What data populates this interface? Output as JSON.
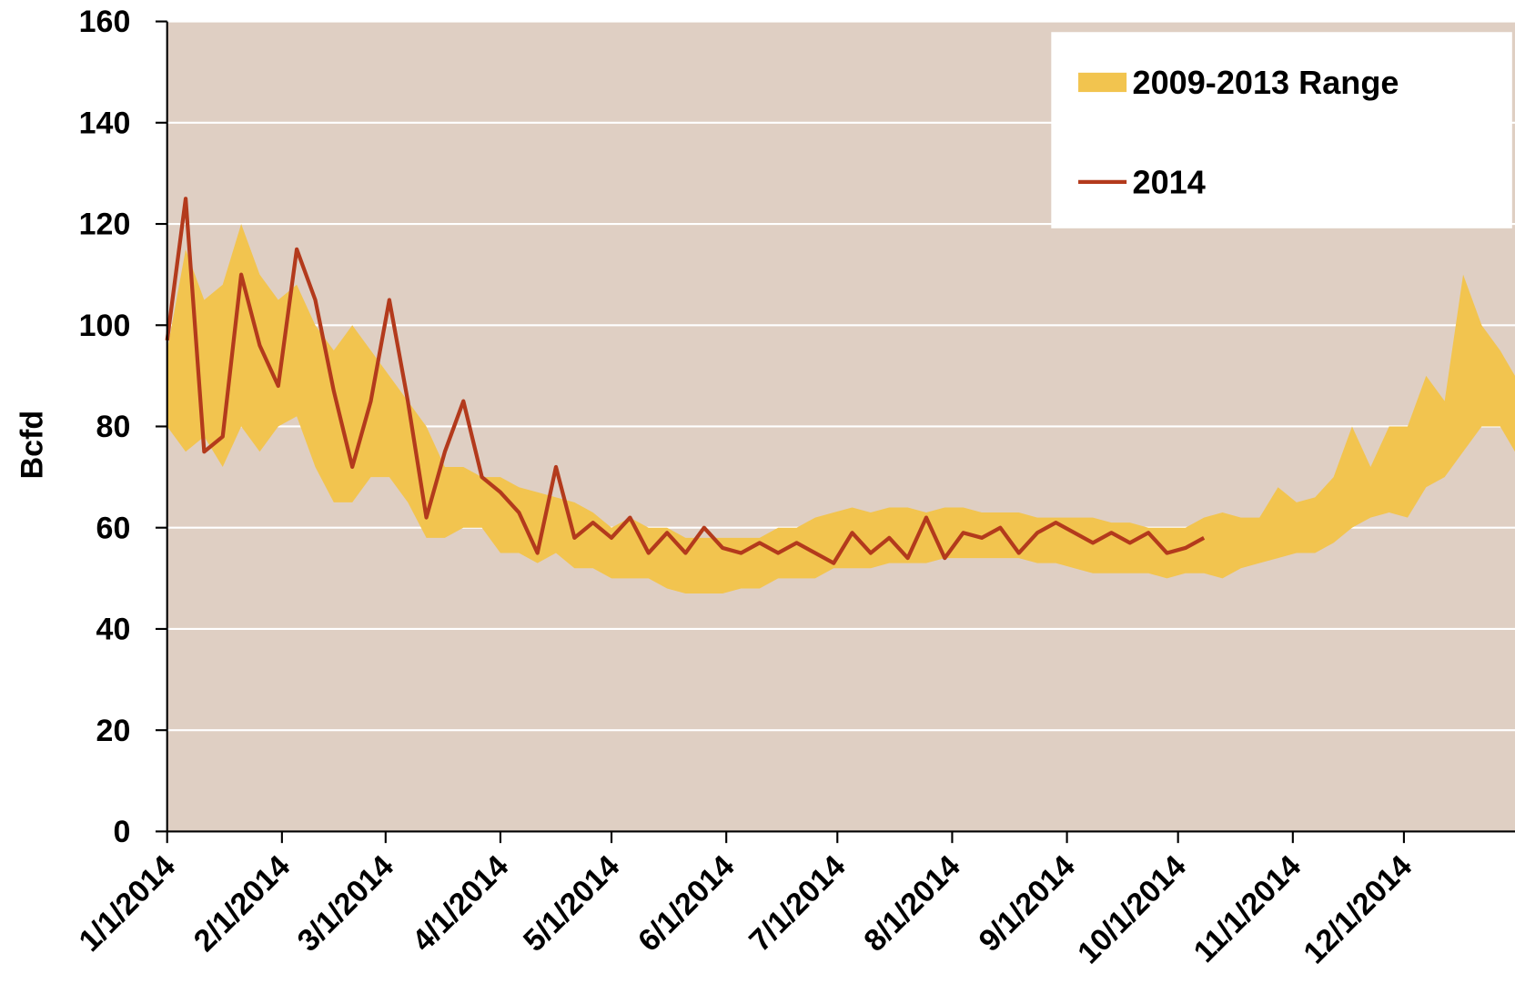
{
  "chart_data": {
    "type": "line",
    "ylabel": "Bcfd",
    "x": [
      "1/1/2014",
      "1/6/2014",
      "1/11/2014",
      "1/16/2014",
      "1/21/2014",
      "1/26/2014",
      "1/31/2014",
      "2/5/2014",
      "2/10/2014",
      "2/15/2014",
      "2/20/2014",
      "2/25/2014",
      "3/2/2014",
      "3/7/2014",
      "3/12/2014",
      "3/17/2014",
      "3/22/2014",
      "3/27/2014",
      "4/1/2014",
      "4/6/2014",
      "4/11/2014",
      "4/16/2014",
      "4/21/2014",
      "4/26/2014",
      "5/1/2014",
      "5/6/2014",
      "5/11/2014",
      "5/16/2014",
      "5/21/2014",
      "5/26/2014",
      "5/31/2014",
      "6/5/2014",
      "6/10/2014",
      "6/15/2014",
      "6/20/2014",
      "6/25/2014",
      "6/30/2014",
      "7/5/2014",
      "7/10/2014",
      "7/15/2014",
      "7/20/2014",
      "7/25/2014",
      "7/30/2014",
      "8/4/2014",
      "8/9/2014",
      "8/14/2014",
      "8/19/2014",
      "8/24/2014",
      "8/29/2014",
      "9/3/2014",
      "9/8/2014",
      "9/13/2014",
      "9/18/2014",
      "9/23/2014",
      "9/28/2014",
      "10/3/2014",
      "10/8/2014",
      "10/13/2014",
      "10/18/2014",
      "10/23/2014",
      "10/28/2014",
      "11/2/2014",
      "11/7/2014",
      "11/12/2014",
      "11/17/2014",
      "11/22/2014",
      "11/27/2014",
      "12/2/2014",
      "12/7/2014",
      "12/12/2014",
      "12/17/2014",
      "12/22/2014",
      "12/27/2014",
      "12/31/2014"
    ],
    "series": [
      {
        "name": "2009-2013 Range",
        "type": "area_range",
        "color": "#f2c44f",
        "high": [
          95,
          115,
          105,
          108,
          120,
          110,
          105,
          108,
          100,
          95,
          100,
          95,
          90,
          85,
          80,
          72,
          72,
          70,
          70,
          68,
          67,
          66,
          65,
          63,
          60,
          62,
          60,
          60,
          58,
          58,
          58,
          58,
          58,
          60,
          60,
          62,
          63,
          64,
          63,
          64,
          64,
          63,
          64,
          64,
          63,
          63,
          63,
          62,
          62,
          62,
          62,
          61,
          61,
          60,
          60,
          60,
          62,
          63,
          62,
          62,
          68,
          65,
          66,
          70,
          80,
          72,
          80,
          80,
          90,
          85,
          110,
          100,
          95,
          90
        ],
        "low": [
          80,
          75,
          78,
          72,
          80,
          75,
          80,
          82,
          72,
          65,
          65,
          70,
          70,
          65,
          58,
          58,
          60,
          60,
          55,
          55,
          53,
          55,
          52,
          52,
          50,
          50,
          50,
          48,
          47,
          47,
          47,
          48,
          48,
          50,
          50,
          50,
          52,
          52,
          52,
          53,
          53,
          53,
          54,
          54,
          54,
          54,
          54,
          53,
          53,
          52,
          51,
          51,
          51,
          51,
          50,
          51,
          51,
          50,
          52,
          53,
          54,
          55,
          55,
          57,
          60,
          62,
          63,
          62,
          68,
          70,
          75,
          80,
          80,
          75
        ]
      },
      {
        "name": "2014",
        "type": "line",
        "color": "#b33a1c",
        "values": [
          97,
          125,
          75,
          78,
          110,
          96,
          88,
          115,
          105,
          87,
          72,
          85,
          105,
          85,
          62,
          75,
          85,
          70,
          67,
          63,
          55,
          72,
          58,
          61,
          58,
          62,
          55,
          59,
          55,
          60,
          56,
          55,
          57,
          55,
          57,
          55,
          53,
          59,
          55,
          58,
          54,
          62,
          54,
          59,
          58,
          60,
          55,
          59,
          61,
          59,
          57,
          59,
          57,
          59,
          55,
          56,
          58,
          null,
          null,
          null,
          null,
          null,
          null,
          null,
          null,
          null,
          null,
          null,
          null,
          null,
          null,
          null,
          null,
          null
        ]
      }
    ],
    "xlim": [
      "1/1/2014",
      "12/31/2014"
    ],
    "xticks": [
      "1/1/2014",
      "2/1/2014",
      "3/1/2014",
      "4/1/2014",
      "5/1/2014",
      "6/1/2014",
      "7/1/2014",
      "8/1/2014",
      "9/1/2014",
      "10/1/2014",
      "11/1/2014",
      "12/1/2014"
    ],
    "ylim": [
      0,
      160
    ],
    "yticks": [
      0,
      20,
      40,
      60,
      80,
      100,
      120,
      140,
      160
    ],
    "grid": true,
    "legend": "upper right",
    "background": "#dfcfc3"
  }
}
